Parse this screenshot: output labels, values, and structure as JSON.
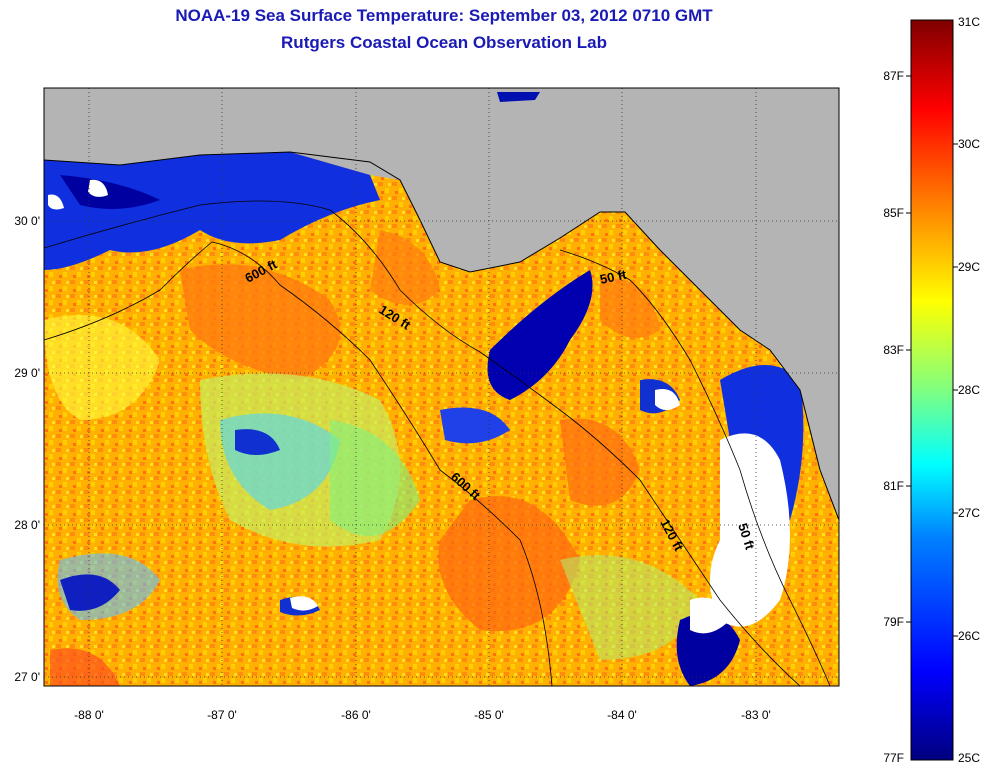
{
  "header": {
    "title": "NOAA-19 Sea Surface Temperature:  September 03, 2012 0710 GMT",
    "subtitle": "Rutgers Coastal Ocean Observation Lab"
  },
  "map": {
    "lat_ticks": [
      "30 0'",
      "29 0'",
      "28 0'",
      "27 0'"
    ],
    "lon_ticks": [
      "-88 0'",
      "-87 0'",
      "-86 0'",
      "-85 0'",
      "-84 0'",
      "-83 0'"
    ],
    "contours": [
      {
        "label": "600 ft"
      },
      {
        "label": "120 ft"
      },
      {
        "label": "600 ft"
      },
      {
        "label": "50 ft"
      },
      {
        "label": "120 ft"
      },
      {
        "label": "50 ft"
      }
    ],
    "land_color": "#b4b4b4",
    "nodata_color": "#ffffff"
  },
  "colorbar": {
    "celsius_labels": [
      "31C",
      "30C",
      "29C",
      "28C",
      "27C",
      "26C",
      "25C"
    ],
    "fahrenheit_labels": [
      "87F",
      "85F",
      "83F",
      "81F",
      "79F",
      "77F"
    ],
    "colors": [
      "#7f0000",
      "#ff0000",
      "#ff8000",
      "#ffff00",
      "#80ff80",
      "#00ffff",
      "#0080ff",
      "#0000ff",
      "#00007f"
    ]
  }
}
